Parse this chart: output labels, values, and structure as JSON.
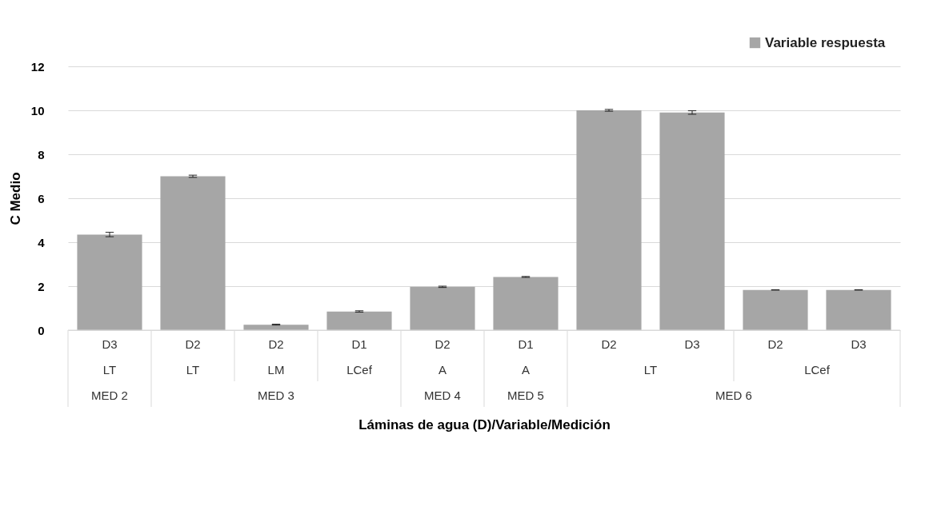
{
  "chart_data": {
    "type": "bar",
    "xlabel": "Láminas de agua (D)/Variable/Medición",
    "ylabel": "C Medio",
    "categories": [
      "D3",
      "D2",
      "D2",
      "D1",
      "D2",
      "D1",
      "D2",
      "D3",
      "D2",
      "D3"
    ],
    "annotations": [
      "LT",
      "LT",
      "LM",
      "LCef",
      "A",
      "A",
      "LT",
      "LCef",
      "MED 2",
      "MED 3",
      "MED 4",
      "MED 5",
      "MED 6"
    ],
    "series": [
      {
        "name": "Variable respuesta",
        "color": "#a6a6a6",
        "values": [
          4.35,
          7.0,
          0.25,
          0.85,
          1.97,
          2.42,
          10.0,
          9.9,
          1.83,
          1.83
        ],
        "errors": [
          0.1,
          0.05,
          0.02,
          0.03,
          0.03,
          0.02,
          0.04,
          0.08,
          0.01,
          0.01
        ]
      }
    ],
    "ylim": [
      0,
      12
    ],
    "yticks": [
      0,
      2,
      4,
      6,
      8,
      10,
      12
    ],
    "grid": "y",
    "legend": "top right"
  }
}
